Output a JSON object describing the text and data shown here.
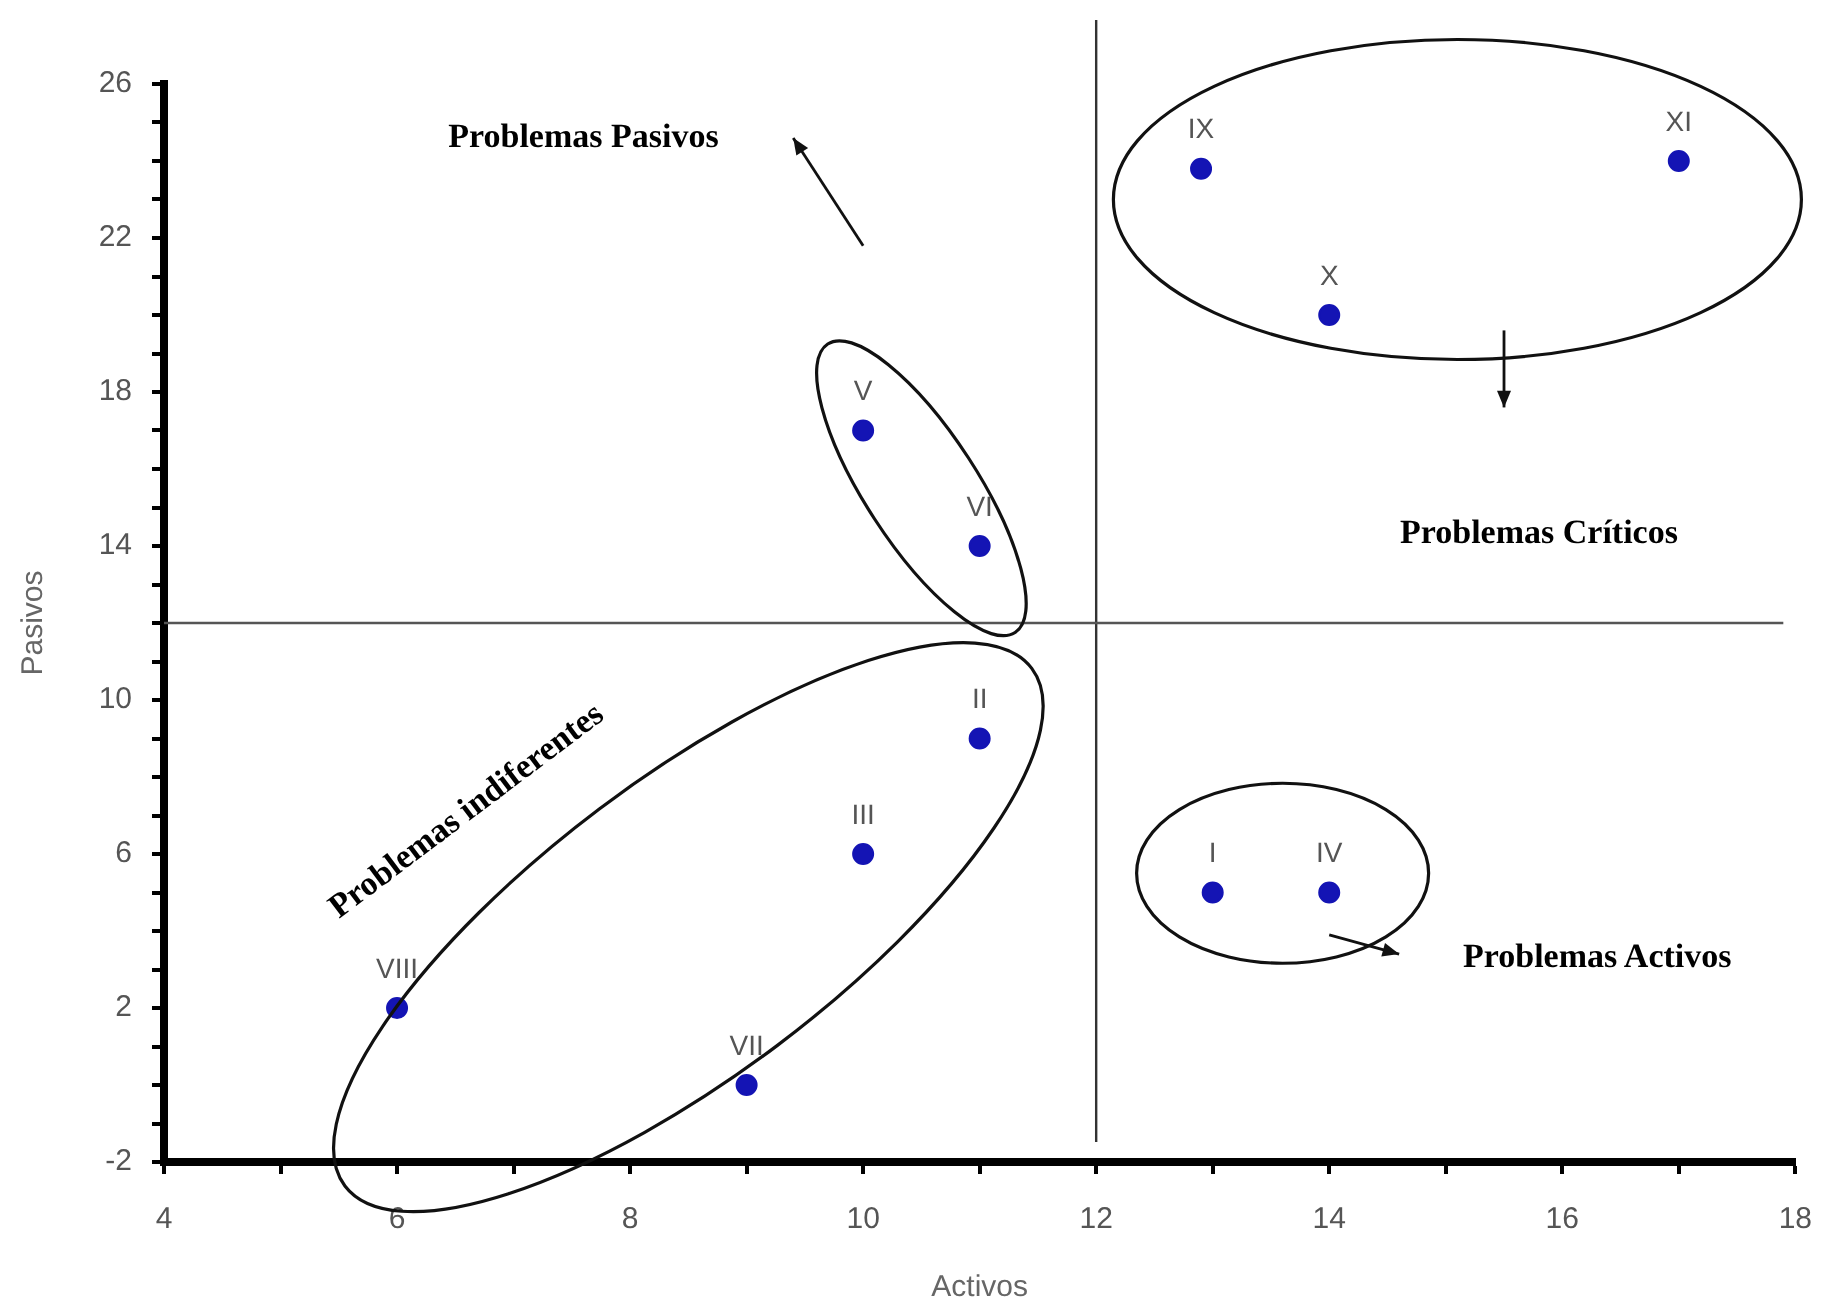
{
  "chart_data": {
    "type": "scatter",
    "xlabel": "Activos",
    "ylabel": "Pasivos",
    "x": [
      13,
      11,
      10,
      14,
      10,
      11,
      9,
      6,
      12.9,
      14,
      17
    ],
    "values": [
      5,
      9,
      6,
      5,
      17,
      14,
      0,
      2,
      23.8,
      20,
      24
    ],
    "color": "#1414b4",
    "marker": "circle",
    "grid": false,
    "legend": false,
    "xlim": [
      4,
      18
    ],
    "xticks": [
      4,
      {
        "value": 5,
        "label": null
      },
      6,
      {
        "value": 7,
        "label": null
      },
      8,
      {
        "value": 9,
        "label": null
      },
      10,
      {
        "value": 11,
        "label": null
      },
      12,
      {
        "value": 13,
        "label": null
      },
      14,
      {
        "value": 15,
        "label": null
      },
      16,
      {
        "value": 17,
        "label": null
      },
      18
    ],
    "ylim": [
      -2,
      26
    ],
    "yticks": [
      -2,
      {
        "value": -1,
        "label": null
      },
      {
        "value": 0,
        "label": null
      },
      {
        "value": 1,
        "label": null
      },
      2,
      {
        "value": 3,
        "label": null
      },
      {
        "value": 4,
        "label": null
      },
      {
        "value": 5,
        "label": null
      },
      6,
      {
        "value": 7,
        "label": null
      },
      {
        "value": 8,
        "label": null
      },
      {
        "value": 9,
        "label": null
      },
      10,
      {
        "value": 11,
        "label": null
      },
      {
        "value": 12,
        "label": null
      },
      {
        "value": 13,
        "label": null
      },
      14,
      {
        "value": 15,
        "label": null
      },
      {
        "value": 16,
        "label": null
      },
      {
        "value": 17,
        "label": null
      },
      18,
      {
        "value": 19,
        "label": null
      },
      {
        "value": 20,
        "label": null
      },
      {
        "value": 21,
        "label": null
      },
      22,
      {
        "value": 23,
        "label": null
      },
      {
        "value": 24,
        "label": null
      },
      {
        "value": 25,
        "label": null
      },
      26
    ],
    "ref_lines": [
      {
        "axis": "x",
        "value": 12,
        "color": "#333333"
      },
      {
        "axis": "y",
        "value": 12,
        "color": "#555555"
      }
    ],
    "annotations": [
      {
        "text": "I",
        "x": 13,
        "y": 5
      },
      {
        "text": "II",
        "x": 11,
        "y": 9
      },
      {
        "text": "III",
        "x": 10,
        "y": 6
      },
      {
        "text": "IV",
        "x": 14,
        "y": 5
      },
      {
        "text": "V",
        "x": 10,
        "y": 17
      },
      {
        "text": "VI",
        "x": 11,
        "y": 14
      },
      {
        "text": "VII",
        "x": 9,
        "y": 0
      },
      {
        "text": "VIII",
        "x": 6,
        "y": 2
      },
      {
        "text": "IX",
        "x": 12.9,
        "y": 23.8
      },
      {
        "text": "X",
        "x": 14,
        "y": 20
      },
      {
        "text": "XI",
        "x": 17,
        "y": 24
      },
      "Problemas Pasivos",
      "Problemas Críticos",
      "Problemas Activos",
      "Problemas indiferentes"
    ]
  }
}
